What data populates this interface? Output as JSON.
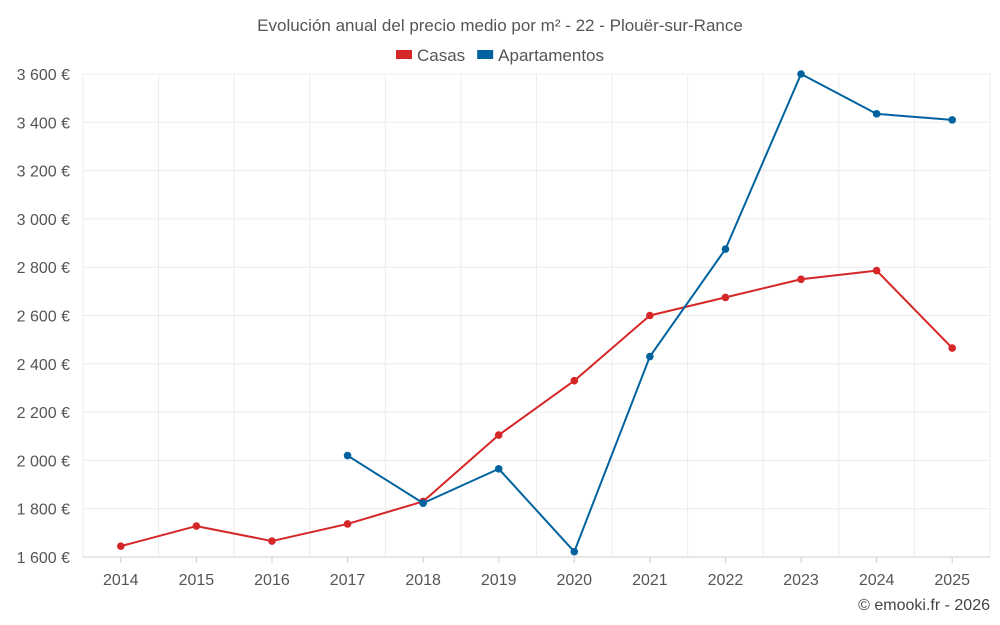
{
  "chart_data": {
    "type": "line",
    "title": "Evolución anual del precio medio por m² - 22 - Plouër-sur-Rance",
    "categories": [
      "2014",
      "2015",
      "2016",
      "2017",
      "2018",
      "2019",
      "2020",
      "2021",
      "2022",
      "2023",
      "2024",
      "2025"
    ],
    "ylim": [
      1600,
      3600
    ],
    "yticks": [
      1600,
      1800,
      2000,
      2200,
      2400,
      2600,
      2800,
      3000,
      3200,
      3400,
      3600
    ],
    "ytick_labels": [
      "1 600 €",
      "1 800 €",
      "2 000 €",
      "2 200 €",
      "2 400 €",
      "2 600 €",
      "2 800 €",
      "3 000 €",
      "3 200 €",
      "3 400 €",
      "3 600 €"
    ],
    "grid": true,
    "legend_position": "top-center",
    "series": [
      {
        "name": "Casas",
        "color": "#d62728",
        "values": [
          1645,
          1728,
          1666,
          1737,
          1830,
          2105,
          2330,
          2600,
          2675,
          2750,
          2786,
          2465
        ]
      },
      {
        "name": "Apartamentos",
        "color": "#00639f",
        "values": [
          null,
          null,
          null,
          2020,
          1823,
          1965,
          1622,
          2430,
          2875,
          3600,
          3435,
          3410
        ]
      }
    ],
    "credit": "© emooki.fr - 2026"
  }
}
